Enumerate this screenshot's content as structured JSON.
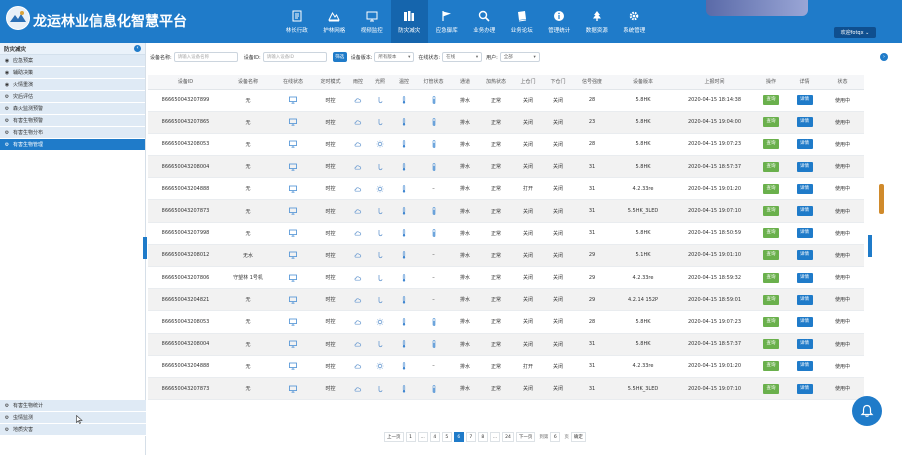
{
  "header": {
    "title": "龙运林业信息化智慧平台",
    "user": "欢迎fotqx ⌄",
    "nav": [
      {
        "label": "林长行政",
        "icon": "document-icon"
      },
      {
        "label": "护林网格",
        "icon": "mountain-icon"
      },
      {
        "label": "视频监控",
        "icon": "monitor-icon"
      },
      {
        "label": "防灾减灾",
        "icon": "books-icon",
        "active": true
      },
      {
        "label": "应急御库",
        "icon": "flag-icon"
      },
      {
        "label": "业务办理",
        "icon": "search-icon"
      },
      {
        "label": "业务论坛",
        "icon": "book-icon"
      },
      {
        "label": "管理统计",
        "icon": "info-icon"
      },
      {
        "label": "数据资源",
        "icon": "tree-icon"
      },
      {
        "label": "系统管理",
        "icon": "gear-icon"
      }
    ]
  },
  "sidebar": {
    "title": "防灾减灾",
    "items": [
      {
        "label": "应急预案",
        "icon": "eye-icon"
      },
      {
        "label": "辅助决策",
        "icon": "eye-icon"
      },
      {
        "label": "火情重演",
        "icon": "eye-icon"
      },
      {
        "label": "灾后评估",
        "icon": "wrench-icon"
      },
      {
        "label": "森火监测预警",
        "icon": "wrench-icon"
      },
      {
        "label": "有害生物预警",
        "icon": "wrench-icon"
      },
      {
        "label": "有害生物分布",
        "icon": "wrench-icon"
      },
      {
        "label": "有害生物管理",
        "icon": "wrench-icon",
        "active": true
      }
    ],
    "bottom_items": [
      {
        "label": "有害生物统计",
        "icon": "wrench-icon"
      },
      {
        "label": "虫情监测",
        "icon": "wrench-icon"
      },
      {
        "label": "地质灾害",
        "icon": "wrench-icon"
      }
    ]
  },
  "filter": {
    "device_name_label": "设备名称:",
    "device_name_placeholder": "请输入设备名称",
    "device_id_label": "设备ID:",
    "device_id_placeholder": "请输入设备ID",
    "search_button": "筛选",
    "version_label": "设备版本:",
    "version_value": "所有版本",
    "online_label": "在线状态:",
    "online_value": "在线",
    "user_label": "用户:",
    "user_value": "全部"
  },
  "table": {
    "columns": [
      "设备ID",
      "设备名称",
      "在线状态",
      "定时模式",
      "雨控",
      "光照",
      "温控",
      "灯管状态",
      "通道",
      "加热状态",
      "上仓门",
      "下仓门",
      "信号强度",
      "设备版本",
      "上报时间",
      "操作",
      "详情",
      "状态"
    ],
    "action_label": "查询",
    "detail_label": "详情",
    "rows": [
      {
        "id": "866650043207899",
        "name": "无",
        "mode": "时控",
        "light": "cloud",
        "lamp": "bar",
        "channel": "排水",
        "heat": "正常",
        "upper": "关闭",
        "lower": "关闭",
        "signal": "28",
        "version": "5.8HK",
        "time": "2020-04-15 18:14:38",
        "status": "使用中"
      },
      {
        "id": "866650043207865",
        "name": "无",
        "mode": "时控",
        "light": "cloud",
        "lamp": "bar",
        "channel": "排水",
        "heat": "正常",
        "upper": "关闭",
        "lower": "关闭",
        "signal": "23",
        "version": "5.8HK",
        "time": "2020-04-15 19:04:00",
        "status": "使用中"
      },
      {
        "id": "866650043208053",
        "name": "无",
        "mode": "时控",
        "light": "sun",
        "lamp": "bar",
        "channel": "排水",
        "heat": "正常",
        "upper": "关闭",
        "lower": "关闭",
        "signal": "28",
        "version": "5.8HK",
        "time": "2020-04-15 19:07:23",
        "status": "使用中"
      },
      {
        "id": "866650043208004",
        "name": "无",
        "mode": "时控",
        "light": "cloud",
        "lamp": "bar",
        "channel": "排水",
        "heat": "正常",
        "upper": "关闭",
        "lower": "关闭",
        "signal": "31",
        "version": "5.8HK",
        "time": "2020-04-15 18:57:37",
        "status": "使用中"
      },
      {
        "id": "866650043204888",
        "name": "无",
        "mode": "时控",
        "light": "sun",
        "lamp": "dash",
        "channel": "排水",
        "heat": "正常",
        "upper": "打开",
        "lower": "关闭",
        "signal": "31",
        "version": "4.2.33re",
        "time": "2020-04-15 19:01:20",
        "status": "使用中"
      },
      {
        "id": "866650043207873",
        "name": "无",
        "mode": "时控",
        "light": "cloud",
        "lamp": "bar",
        "channel": "排水",
        "heat": "正常",
        "upper": "关闭",
        "lower": "关闭",
        "signal": "31",
        "version": "5.5HK_3LED",
        "time": "2020-04-15 19:07:10",
        "status": "使用中"
      },
      {
        "id": "866650043207998",
        "name": "无",
        "mode": "时控",
        "light": "cloud",
        "lamp": "bar",
        "channel": "排水",
        "heat": "正常",
        "upper": "关闭",
        "lower": "关闭",
        "signal": "31",
        "version": "5.8HK",
        "time": "2020-04-15 18:50:59",
        "status": "使用中"
      },
      {
        "id": "866650043208012",
        "name": "无水",
        "mode": "时控",
        "light": "cloud",
        "lamp": "dash",
        "channel": "排水",
        "heat": "正常",
        "upper": "关闭",
        "lower": "关闭",
        "signal": "29",
        "version": "5.1HK",
        "time": "2020-04-15 19:01:10",
        "status": "使用中"
      },
      {
        "id": "866650043207806",
        "name": "守望林 1号机",
        "mode": "时控",
        "light": "cloud",
        "lamp": "dash",
        "channel": "排水",
        "heat": "正常",
        "upper": "关闭",
        "lower": "关闭",
        "signal": "29",
        "version": "4.2.33re",
        "time": "2020-04-15 18:59:32",
        "status": "使用中"
      },
      {
        "id": "866650043204821",
        "name": "无",
        "mode": "时控",
        "light": "cloud",
        "lamp": "dash",
        "channel": "排水",
        "heat": "正常",
        "upper": "关闭",
        "lower": "关闭",
        "signal": "29",
        "version": "4.2.14 152P",
        "time": "2020-04-15 18:59:01",
        "status": "使用中"
      },
      {
        "id": "866650043208053",
        "name": "无",
        "mode": "时控",
        "light": "sun",
        "lamp": "bar",
        "channel": "排水",
        "heat": "正常",
        "upper": "关闭",
        "lower": "关闭",
        "signal": "28",
        "version": "5.8HK",
        "time": "2020-04-15 19:07:23",
        "status": "使用中"
      },
      {
        "id": "866650043208004",
        "name": "无",
        "mode": "时控",
        "light": "cloud",
        "lamp": "bar",
        "channel": "排水",
        "heat": "正常",
        "upper": "关闭",
        "lower": "关闭",
        "signal": "31",
        "version": "5.8HK",
        "time": "2020-04-15 18:57:37",
        "status": "使用中"
      },
      {
        "id": "866650043204888",
        "name": "无",
        "mode": "时控",
        "light": "sun",
        "lamp": "dash",
        "channel": "排水",
        "heat": "正常",
        "upper": "打开",
        "lower": "关闭",
        "signal": "31",
        "version": "4.2.33re",
        "time": "2020-04-15 19:01:20",
        "status": "使用中"
      },
      {
        "id": "866650043207873",
        "name": "无",
        "mode": "时控",
        "light": "cloud",
        "lamp": "bar",
        "channel": "排水",
        "heat": "正常",
        "upper": "关闭",
        "lower": "关闭",
        "signal": "31",
        "version": "5.5HK_3LED",
        "time": "2020-04-15 19:07:10",
        "status": "使用中"
      }
    ]
  },
  "pagination": {
    "prev": "上一页",
    "pages": [
      "1",
      "...",
      "4",
      "5",
      "6",
      "7",
      "8",
      "...",
      "24"
    ],
    "current": "6",
    "next": "下一页",
    "goto_label": "到第",
    "goto_value": "6",
    "page_unit": "页",
    "confirm": "确定"
  },
  "colors": {
    "primary": "#1f7bc9",
    "query_button": "#6ab04c"
  }
}
